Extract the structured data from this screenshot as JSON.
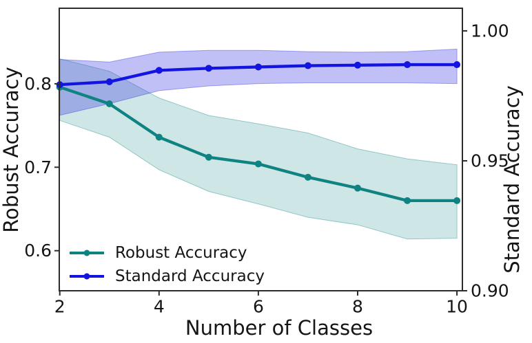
{
  "chart_data": {
    "type": "line",
    "title": "",
    "xlabel": "Number of Classes",
    "x": [
      2,
      3,
      4,
      5,
      6,
      7,
      8,
      9,
      10
    ],
    "x_ticks": [
      "2",
      "4",
      "6",
      "8",
      "10"
    ],
    "xlim": [
      1.99,
      10.11
    ],
    "grid": false,
    "axes": {
      "left": {
        "label": "Robust Accuracy",
        "ticks": [
          "0.6",
          "0.7",
          "0.8"
        ],
        "lim": [
          0.552,
          0.8905
        ]
      },
      "right": {
        "label": "Standard Accuracy",
        "ticks": [
          "0.90",
          "0.95",
          "1.00"
        ],
        "lim": [
          0.9,
          1.0087
        ]
      }
    },
    "series": [
      {
        "name": "Robust Accuracy",
        "axis": "left",
        "color": "#0f8282",
        "band_fill": "rgba(15,130,130,0.20)",
        "band_edge": "rgba(15,130,130,0.38)",
        "values": [
          0.796,
          0.776,
          0.736,
          0.712,
          0.704,
          0.688,
          0.675,
          0.66,
          0.66
        ],
        "band_upper": [
          0.83,
          0.815,
          0.783,
          0.762,
          0.752,
          0.741,
          0.722,
          0.71,
          0.703
        ],
        "band_lower": [
          0.756,
          0.736,
          0.697,
          0.671,
          0.656,
          0.64,
          0.631,
          0.614,
          0.615
        ]
      },
      {
        "name": "Standard Accuracy",
        "axis": "right",
        "color": "#1414e0",
        "band_fill": "rgba(45,45,225,0.30)",
        "band_edge": "rgba(45,45,225,0.40)",
        "values": [
          0.9793,
          0.9804,
          0.9848,
          0.9856,
          0.9861,
          0.9866,
          0.9868,
          0.987,
          0.987
        ],
        "band_upper": [
          0.989,
          0.988,
          0.9918,
          0.9925,
          0.9925,
          0.992,
          0.9918,
          0.992,
          0.993
        ],
        "band_lower": [
          0.9675,
          0.972,
          0.977,
          0.9788,
          0.9797,
          0.98,
          0.98,
          0.98,
          0.9797
        ]
      }
    ],
    "legend": {
      "items": [
        "Robust Accuracy",
        "Standard Accuracy"
      ],
      "position": "lower left",
      "frame": false
    },
    "frame_color": "#2b2b2b"
  }
}
